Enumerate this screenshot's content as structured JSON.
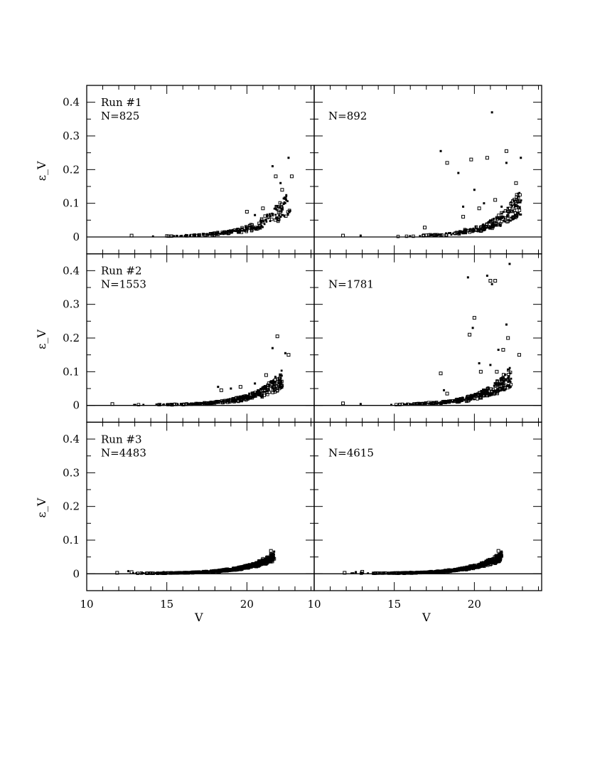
{
  "figure": {
    "xlabel": "V",
    "ylabel": "ε_V",
    "x_ticklabels": [
      "10",
      "15",
      "20"
    ],
    "y_ticklabels": [
      "0",
      "0.1",
      "0.2",
      "0.3",
      "0.4"
    ]
  },
  "colors": {
    "ink": "#000000",
    "background": "#ffffff"
  },
  "chart_data": [
    {
      "type": "scatter",
      "run_label": "Run #1",
      "n_label": "N=825",
      "xlim": [
        10,
        24.2
      ],
      "ylim": [
        -0.05,
        0.45
      ],
      "x_ticks": [
        10,
        15,
        20
      ],
      "y_ticks": [
        0,
        0.1,
        0.2,
        0.3,
        0.4
      ],
      "zero_line": true,
      "shape": {
        "start": 13,
        "end": 22.7,
        "k": 0.53,
        "spread": 0.35,
        "count": 230,
        "top_at_end": 0.12
      },
      "points": [
        [
          12.8,
          0.004
        ],
        [
          18.2,
          0.015
        ],
        [
          20.0,
          0.075
        ],
        [
          20.5,
          0.065
        ],
        [
          21.0,
          0.085
        ],
        [
          21.6,
          0.21
        ],
        [
          21.8,
          0.18
        ],
        [
          22.1,
          0.16
        ],
        [
          22.2,
          0.14
        ],
        [
          22.6,
          0.235
        ],
        [
          22.8,
          0.18
        ]
      ]
    },
    {
      "type": "scatter",
      "run_label": "",
      "n_label": "N=892",
      "xlim": [
        10,
        24.2
      ],
      "ylim": [
        -0.05,
        0.45
      ],
      "x_ticks": [
        10,
        15,
        20
      ],
      "y_ticks": [
        0,
        0.1,
        0.2,
        0.3,
        0.4
      ],
      "zero_line": true,
      "shape": {
        "start": 15,
        "end": 22.9,
        "k": 0.55,
        "spread": 0.35,
        "count": 240,
        "top_at_end": 0.12
      },
      "points": [
        [
          11.8,
          0.004
        ],
        [
          12.9,
          0.004
        ],
        [
          16.9,
          0.028
        ],
        [
          17.9,
          0.255
        ],
        [
          18.3,
          0.22
        ],
        [
          19.0,
          0.19
        ],
        [
          19.3,
          0.06
        ],
        [
          19.3,
          0.09
        ],
        [
          19.8,
          0.23
        ],
        [
          20.0,
          0.14
        ],
        [
          20.3,
          0.085
        ],
        [
          20.6,
          0.1
        ],
        [
          20.8,
          0.235
        ],
        [
          21.1,
          0.37
        ],
        [
          21.3,
          0.11
        ],
        [
          21.7,
          0.09
        ],
        [
          22.0,
          0.255
        ],
        [
          22.0,
          0.22
        ],
        [
          22.6,
          0.16
        ],
        [
          22.9,
          0.235
        ]
      ]
    },
    {
      "type": "scatter",
      "run_label": "Run #2",
      "n_label": "N=1553",
      "xlim": [
        10,
        24.2
      ],
      "ylim": [
        -0.05,
        0.45
      ],
      "x_ticks": [
        10,
        15,
        20
      ],
      "y_ticks": [
        0,
        0.1,
        0.2,
        0.3,
        0.4
      ],
      "zero_line": true,
      "shape": {
        "start": 12.5,
        "end": 22.2,
        "k": 0.55,
        "spread": 0.35,
        "count": 320,
        "top_at_end": 0.09
      },
      "points": [
        [
          11.6,
          0.004
        ],
        [
          18.2,
          0.055
        ],
        [
          18.4,
          0.045
        ],
        [
          19.0,
          0.05
        ],
        [
          19.6,
          0.055
        ],
        [
          20.5,
          0.065
        ],
        [
          21.2,
          0.09
        ],
        [
          21.6,
          0.17
        ],
        [
          21.9,
          0.205
        ],
        [
          22.4,
          0.155
        ],
        [
          22.6,
          0.15
        ]
      ]
    },
    {
      "type": "scatter",
      "run_label": "",
      "n_label": "N=1781",
      "xlim": [
        10,
        24.2
      ],
      "ylim": [
        -0.05,
        0.45
      ],
      "x_ticks": [
        10,
        15,
        20
      ],
      "y_ticks": [
        0,
        0.1,
        0.2,
        0.3,
        0.4
      ],
      "zero_line": true,
      "shape": {
        "start": 14,
        "end": 22.3,
        "k": 0.55,
        "spread": 0.35,
        "count": 340,
        "top_at_end": 0.1
      },
      "points": [
        [
          11.8,
          0.006
        ],
        [
          12.9,
          0.004
        ],
        [
          17.9,
          0.095
        ],
        [
          18.1,
          0.045
        ],
        [
          18.3,
          0.035
        ],
        [
          19.6,
          0.38
        ],
        [
          19.7,
          0.21
        ],
        [
          19.9,
          0.23
        ],
        [
          20.0,
          0.26
        ],
        [
          20.3,
          0.125
        ],
        [
          20.4,
          0.1
        ],
        [
          20.8,
          0.385
        ],
        [
          21.0,
          0.37
        ],
        [
          21.1,
          0.36
        ],
        [
          21.3,
          0.37
        ],
        [
          21.0,
          0.12
        ],
        [
          21.4,
          0.1
        ],
        [
          21.5,
          0.165
        ],
        [
          21.8,
          0.165
        ],
        [
          22.0,
          0.24
        ],
        [
          22.1,
          0.2
        ],
        [
          22.2,
          0.42
        ],
        [
          22.8,
          0.15
        ]
      ]
    },
    {
      "type": "scatter",
      "run_label": "Run #3",
      "n_label": "N=4483",
      "xlim": [
        10,
        24.2
      ],
      "ylim": [
        -0.05,
        0.45
      ],
      "x_ticks": [
        10,
        15,
        20
      ],
      "y_ticks": [
        0,
        0.1,
        0.2,
        0.3,
        0.4
      ],
      "zero_line": true,
      "shape": {
        "start": 12,
        "end": 21.7,
        "k": 0.55,
        "spread": 0.2,
        "count": 680,
        "top_at_end": 0.07
      },
      "points": [
        [
          11.9,
          0.003
        ],
        [
          12.6,
          0.008
        ],
        [
          12.8,
          0.005
        ],
        [
          14.8,
          0.005
        ],
        [
          21.5,
          0.068
        ],
        [
          21.7,
          0.066
        ]
      ]
    },
    {
      "type": "scatter",
      "run_label": "",
      "n_label": "N=4615",
      "xlim": [
        10,
        24.2
      ],
      "ylim": [
        -0.05,
        0.45
      ],
      "x_ticks": [
        10,
        15,
        20
      ],
      "y_ticks": [
        0,
        0.1,
        0.2,
        0.3,
        0.4
      ],
      "zero_line": true,
      "shape": {
        "start": 12,
        "end": 21.7,
        "k": 0.55,
        "spread": 0.2,
        "count": 680,
        "top_at_end": 0.07
      },
      "points": [
        [
          11.9,
          0.003
        ],
        [
          12.6,
          0.005
        ],
        [
          13.0,
          0.006
        ],
        [
          16.0,
          0.006
        ],
        [
          21.5,
          0.068
        ],
        [
          21.7,
          0.066
        ]
      ]
    }
  ]
}
